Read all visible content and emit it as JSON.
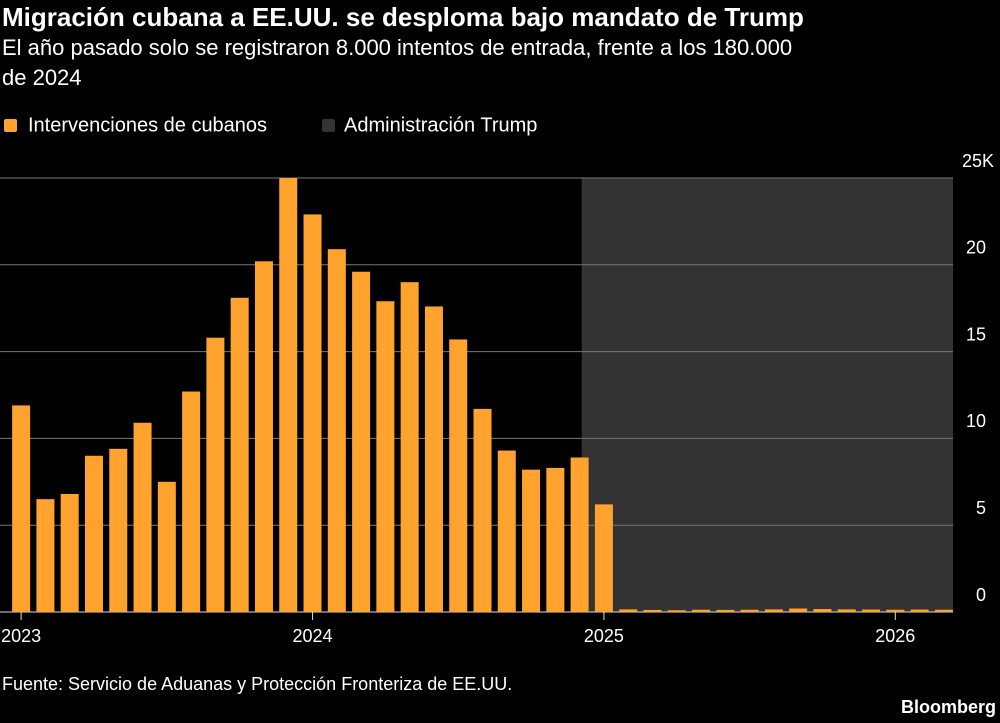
{
  "chart_data": {
    "type": "bar",
    "title": "Migración cubana a EE.UU. se desploma bajo mandato de Trump",
    "subtitle": [
      "El año pasado solo se registraron 8.000 intentos de entrada, frente a los 180.000",
      "de 2024"
    ],
    "categories": [
      "2023",
      null,
      null,
      null,
      null,
      null,
      null,
      null,
      null,
      null,
      null,
      null,
      "2024",
      null,
      null,
      null,
      null,
      null,
      null,
      null,
      null,
      null,
      null,
      null,
      "2025",
      null,
      null,
      null,
      null,
      null,
      null,
      null,
      null,
      null,
      null,
      null,
      "2026",
      null,
      null
    ],
    "series": [
      {
        "name": "Intervenciones de cubanos",
        "color": "#ffa22e",
        "values": [
          11.9,
          6.5,
          6.8,
          9.0,
          9.4,
          10.9,
          7.5,
          12.7,
          15.8,
          18.1,
          20.2,
          25.0,
          22.9,
          20.9,
          19.6,
          17.9,
          19.0,
          17.6,
          15.7,
          11.7,
          9.3,
          8.2,
          8.3,
          8.9,
          6.2,
          0.15,
          0.12,
          0.1,
          0.13,
          0.12,
          0.13,
          0.15,
          0.2,
          0.17,
          0.15,
          0.14,
          0.13,
          0.14,
          0.13
        ]
      }
    ],
    "shade": {
      "name": "Administración Trump",
      "color": "#333333",
      "from": "2025"
    },
    "ylim": [
      0,
      25
    ],
    "yticks": [
      0,
      5,
      10,
      15,
      20,
      {
        "value": 25,
        "label": "25K"
      }
    ],
    "grid": true,
    "source": "Fuente: Servicio de Aduanas y Protección Fronteriza de EE.UU.",
    "credit": "Bloomberg"
  }
}
